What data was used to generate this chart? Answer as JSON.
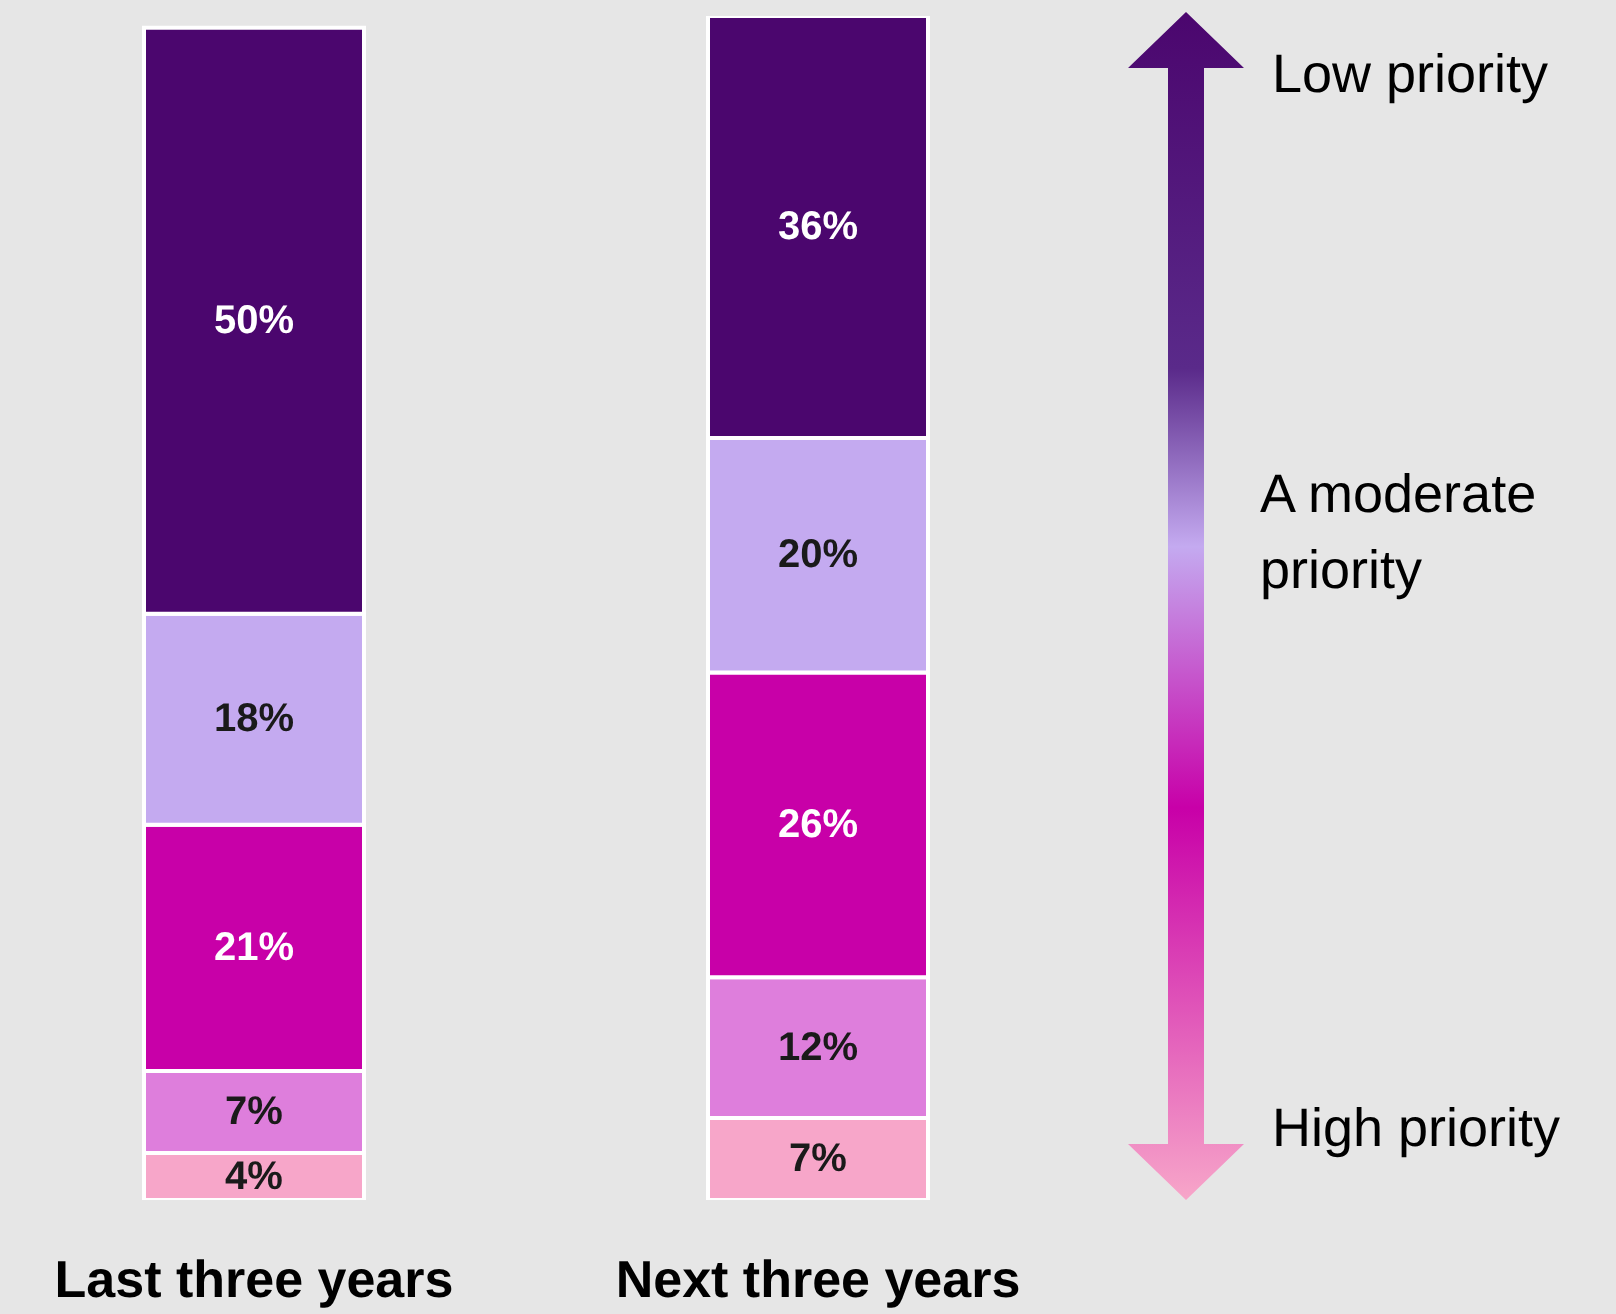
{
  "chart_data": {
    "type": "bar",
    "stacked": true,
    "categories": [
      "Last three years",
      "Next three years"
    ],
    "tick_labels": "x",
    "series": [
      {
        "color": "#f7a6c9",
        "values": [
          4,
          7
        ],
        "value_labels": [
          "4%",
          "7%"
        ]
      },
      {
        "color": "#de7edc",
        "values": [
          7,
          12
        ],
        "value_labels": [
          "7%",
          "12%"
        ]
      },
      {
        "color": "#c800a8",
        "values": [
          21,
          26
        ],
        "value_labels": [
          "21%",
          "26%"
        ]
      },
      {
        "color": "#c4aaf0",
        "values": [
          18,
          20
        ],
        "value_labels": [
          "18%",
          "20%"
        ]
      },
      {
        "color": "#4b066e",
        "values": [
          50,
          36
        ],
        "value_labels": [
          "50%",
          "36%"
        ]
      }
    ],
    "annotations": [
      "Low priority",
      "A moderate priority",
      "High priority"
    ]
  }
}
